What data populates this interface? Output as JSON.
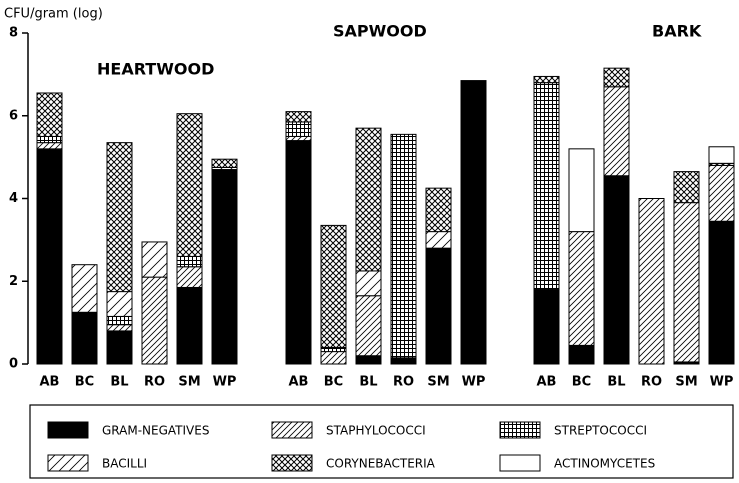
{
  "chart_data": {
    "type": "stacked_bar",
    "y_label": "CFU/gram (log)",
    "annotations": [
      "HEARTWOOD",
      "SAPWOOD",
      "BARK"
    ],
    "categories": [
      "AB",
      "BC",
      "BL",
      "RO",
      "SM",
      "WP",
      "AB",
      "BC",
      "BL",
      "RO",
      "SM",
      "WP",
      "AB",
      "BC",
      "BL",
      "RO",
      "SM",
      "WP"
    ],
    "series": [
      {
        "name": "GRAM-NEGATIVES",
        "color": "#000000",
        "values": [
          5.2,
          1.25,
          0.8,
          0,
          1.85,
          4.7,
          5.4,
          0,
          0.2,
          0.15,
          2.8,
          6.85,
          1.8,
          0.45,
          4.55,
          0,
          0.05,
          3.45
        ]
      },
      {
        "name": "STAPHYLOCOCCI",
        "color": "#ffffff",
        "values": [
          0.15,
          0,
          0.15,
          2.1,
          0.5,
          0,
          0.1,
          0.3,
          1.45,
          0,
          0,
          0,
          0,
          2.75,
          2.15,
          4.0,
          3.85,
          1.35
        ]
      },
      {
        "name": "STREPTOCOCCI",
        "color": "#ffffff",
        "values": [
          0.15,
          0,
          0.2,
          0,
          0.25,
          0,
          0.35,
          0.1,
          0,
          5.4,
          0,
          0,
          5.0,
          0,
          0,
          0,
          0,
          0
        ]
      },
      {
        "name": "BACILLI",
        "color": "#ffffff",
        "values": [
          0,
          1.15,
          0.6,
          0.85,
          0,
          0.05,
          0,
          0,
          0.6,
          0,
          0.4,
          0,
          0,
          0,
          0,
          0,
          0,
          0
        ]
      },
      {
        "name": "CORYNEBACTERIA",
        "color": "#ffffff",
        "values": [
          1.05,
          0,
          3.6,
          0,
          3.45,
          0.2,
          0.25,
          2.95,
          3.45,
          0,
          1.05,
          0,
          0.15,
          0,
          0.45,
          0,
          0.75,
          0.05
        ]
      },
      {
        "name": "ACTINOMYCETES",
        "color": "#ffffff",
        "values": [
          0,
          0,
          0,
          0,
          0,
          0,
          0,
          0,
          0,
          0,
          0,
          0,
          0,
          2.0,
          0,
          0,
          0,
          0.4
        ]
      }
    ],
    "ylim": [
      0,
      8
    ],
    "yticks": [
      0,
      2,
      4,
      6,
      8
    ]
  }
}
